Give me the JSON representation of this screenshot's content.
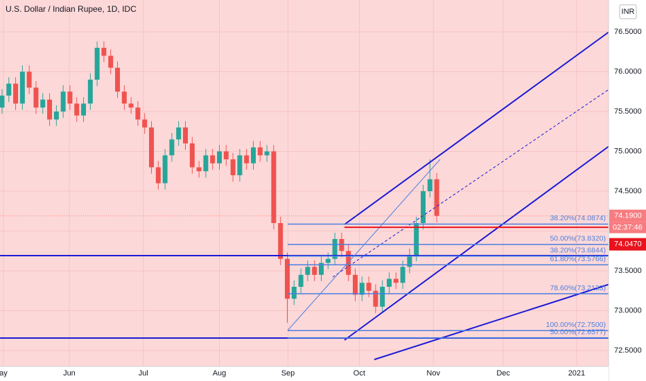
{
  "chart_data": {
    "type": "candlestick",
    "title": "U.S. Dollar / Indian Rupee, 1D, IDC",
    "currency": "INR",
    "up_color": "#26a69a",
    "down_color": "#ef5350",
    "ylim": [
      72.3,
      76.9
    ],
    "yticks": [
      {
        "value": 72.5,
        "label": "72.5000"
      },
      {
        "value": 73,
        "label": "73.0000"
      },
      {
        "value": 73.5,
        "label": "73.5000"
      },
      {
        "value": 74,
        "label": "74.0000"
      },
      {
        "value": 74.5,
        "label": "74.5000"
      },
      {
        "value": 75,
        "label": "75.0000"
      },
      {
        "value": 75.5,
        "label": "75.5000"
      },
      {
        "value": 76,
        "label": "76.0000"
      },
      {
        "value": 76.5,
        "label": "76.5000"
      }
    ],
    "xlim": [
      -0.3,
      89.3
    ],
    "xticks": [
      {
        "value": 0.2,
        "label": "ay"
      },
      {
        "value": 9.9,
        "label": "Jun"
      },
      {
        "value": 20.8,
        "label": "Jul"
      },
      {
        "value": 32,
        "label": "Aug"
      },
      {
        "value": 42.1,
        "label": "Sep"
      },
      {
        "value": 52.6,
        "label": "Oct"
      },
      {
        "value": 63.5,
        "label": "Nov"
      },
      {
        "value": 73.8,
        "label": "Dec"
      },
      {
        "value": 84.6,
        "label": "2021"
      }
    ],
    "candles": [
      [
        75.55,
        75.78,
        75.47,
        75.7
      ],
      [
        75.7,
        75.93,
        75.62,
        75.85
      ],
      [
        75.85,
        75.93,
        75.52,
        75.6
      ],
      [
        75.6,
        76.08,
        75.52,
        76.0
      ],
      [
        76.0,
        76.08,
        75.72,
        75.8
      ],
      [
        75.8,
        75.88,
        75.47,
        75.55
      ],
      [
        75.55,
        75.73,
        75.47,
        75.65
      ],
      [
        75.65,
        75.73,
        75.32,
        75.4
      ],
      [
        75.4,
        75.58,
        75.32,
        75.5
      ],
      [
        75.5,
        75.83,
        75.42,
        75.75
      ],
      [
        75.75,
        75.83,
        75.52,
        75.6
      ],
      [
        75.6,
        75.68,
        75.37,
        75.45
      ],
      [
        75.45,
        75.68,
        75.37,
        75.6
      ],
      [
        75.6,
        75.98,
        75.52,
        75.9
      ],
      [
        75.9,
        76.38,
        75.82,
        76.3
      ],
      [
        76.3,
        76.38,
        76.12,
        76.2
      ],
      [
        76.2,
        76.28,
        75.97,
        76.05
      ],
      [
        76.05,
        76.13,
        75.67,
        75.75
      ],
      [
        75.75,
        75.83,
        75.52,
        75.6
      ],
      [
        75.6,
        75.68,
        75.47,
        75.55
      ],
      [
        75.55,
        75.63,
        75.32,
        75.4
      ],
      [
        75.4,
        75.48,
        75.22,
        75.3
      ],
      [
        75.3,
        75.38,
        74.72,
        74.8
      ],
      [
        74.8,
        74.88,
        74.52,
        74.6
      ],
      [
        74.6,
        75.03,
        74.52,
        74.95
      ],
      [
        74.95,
        75.23,
        74.87,
        75.15
      ],
      [
        75.15,
        75.38,
        75.07,
        75.3
      ],
      [
        75.3,
        75.38,
        75.02,
        75.1
      ],
      [
        75.1,
        75.18,
        74.72,
        74.8
      ],
      [
        74.8,
        74.88,
        74.67,
        74.75
      ],
      [
        74.75,
        75.03,
        74.67,
        74.95
      ],
      [
        74.95,
        75.03,
        74.77,
        74.85
      ],
      [
        74.85,
        75.08,
        74.77,
        75.0
      ],
      [
        75.0,
        75.08,
        74.82,
        74.9
      ],
      [
        74.9,
        74.98,
        74.62,
        74.7
      ],
      [
        74.7,
        75.03,
        74.62,
        74.95
      ],
      [
        74.95,
        75.03,
        74.77,
        74.85
      ],
      [
        74.85,
        75.13,
        74.77,
        75.05
      ],
      [
        75.05,
        75.13,
        74.87,
        74.95
      ],
      [
        74.95,
        75.08,
        74.87,
        75.0
      ],
      [
        75.0,
        75.08,
        74.02,
        74.1
      ],
      [
        74.1,
        74.18,
        73.57,
        73.65
      ],
      [
        73.65,
        73.73,
        72.85,
        73.15
      ],
      [
        73.15,
        73.38,
        73.07,
        73.3
      ],
      [
        73.3,
        73.53,
        73.22,
        73.45
      ],
      [
        73.45,
        73.63,
        73.37,
        73.55
      ],
      [
        73.55,
        73.63,
        73.37,
        73.45
      ],
      [
        73.45,
        73.68,
        73.37,
        73.6
      ],
      [
        73.6,
        73.73,
        73.52,
        73.65
      ],
      [
        73.65,
        73.98,
        73.57,
        73.9
      ],
      [
        73.9,
        73.98,
        73.67,
        73.75
      ],
      [
        73.75,
        73.83,
        73.37,
        73.45
      ],
      [
        73.45,
        73.53,
        73.12,
        73.2
      ],
      [
        73.2,
        73.43,
        73.12,
        73.35
      ],
      [
        73.35,
        73.43,
        73.17,
        73.25
      ],
      [
        73.25,
        73.33,
        72.97,
        73.05
      ],
      [
        73.05,
        73.38,
        72.97,
        73.3
      ],
      [
        73.3,
        73.48,
        73.22,
        73.4
      ],
      [
        73.4,
        73.48,
        73.27,
        73.35
      ],
      [
        73.35,
        73.63,
        73.27,
        73.55
      ],
      [
        73.55,
        73.78,
        73.47,
        73.7
      ],
      [
        73.7,
        74.18,
        73.62,
        74.1
      ],
      [
        74.1,
        74.58,
        74.02,
        74.5
      ],
      [
        74.5,
        74.9,
        74.42,
        74.65
      ],
      [
        74.65,
        74.73,
        74.11,
        74.19
      ]
    ],
    "fib_levels": [
      {
        "value": 74.0874,
        "label": "38.20%(74.0874)"
      },
      {
        "value": 73.832,
        "label": "50.00%(73.8320)"
      },
      {
        "value": 73.6844,
        "label": "38.20%(73.6844)"
      },
      {
        "value": 73.5766,
        "label": "61.80%(73.5766)"
      },
      {
        "value": 73.2133,
        "label": "78.60%(73.2133)"
      },
      {
        "value": 72.75,
        "label": "100.00%(72.7500)"
      },
      {
        "value": 72.6577,
        "label": "50.00%(72.6577)"
      }
    ],
    "fib_color": "#4a7fe0",
    "last_price": {
      "value": 74.19,
      "label": "74.1900"
    },
    "countdown": "02:37:46",
    "level": {
      "value": 74.047,
      "label": "74.0470"
    },
    "level_color": "#e8131c"
  }
}
